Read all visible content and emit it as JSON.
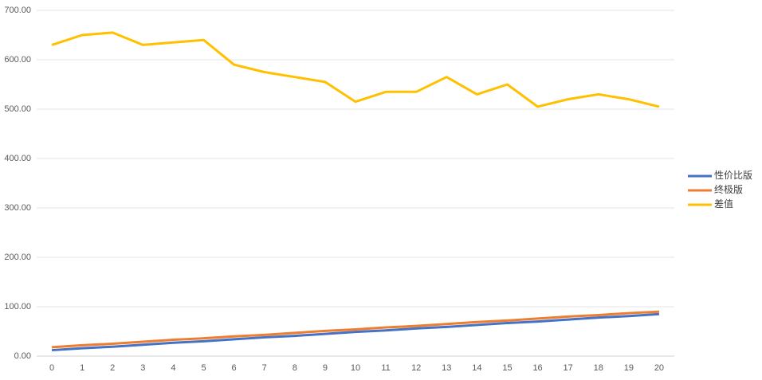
{
  "chart_data": {
    "type": "line",
    "categories": [
      "0",
      "1",
      "2",
      "3",
      "4",
      "5",
      "6",
      "7",
      "8",
      "9",
      "10",
      "11",
      "12",
      "13",
      "14",
      "15",
      "16",
      "17",
      "18",
      "19",
      "20"
    ],
    "series": [
      {
        "name": "性价比版",
        "color": "#4472c4",
        "values": [
          12,
          16,
          19,
          23,
          27,
          30,
          34,
          38,
          41,
          45,
          49,
          52,
          56,
          59,
          63,
          67,
          70,
          74,
          78,
          81,
          85
        ]
      },
      {
        "name": "终极版",
        "color": "#ed7d31",
        "values": [
          18,
          22,
          25,
          29,
          33,
          36,
          40,
          43,
          47,
          51,
          54,
          58,
          61,
          65,
          69,
          72,
          76,
          80,
          83,
          87,
          90
        ]
      },
      {
        "name": "差值",
        "color": "#ffc000",
        "values": [
          630,
          650,
          655,
          630,
          635,
          640,
          590,
          575,
          565,
          555,
          515,
          535,
          535,
          565,
          530,
          550,
          505,
          520,
          530,
          520,
          505
        ]
      }
    ],
    "ylim": [
      0,
      700
    ],
    "yticks": [
      {
        "value": 0,
        "label": "0.00"
      },
      {
        "value": 100,
        "label": "100.00"
      },
      {
        "value": 200,
        "label": "200.00"
      },
      {
        "value": 300,
        "label": "300.00"
      },
      {
        "value": 400,
        "label": "400.00"
      },
      {
        "value": 500,
        "label": "500.00"
      },
      {
        "value": 600,
        "label": "600.00"
      },
      {
        "value": 700,
        "label": "700.00"
      }
    ],
    "grid": true,
    "legend": "right"
  }
}
